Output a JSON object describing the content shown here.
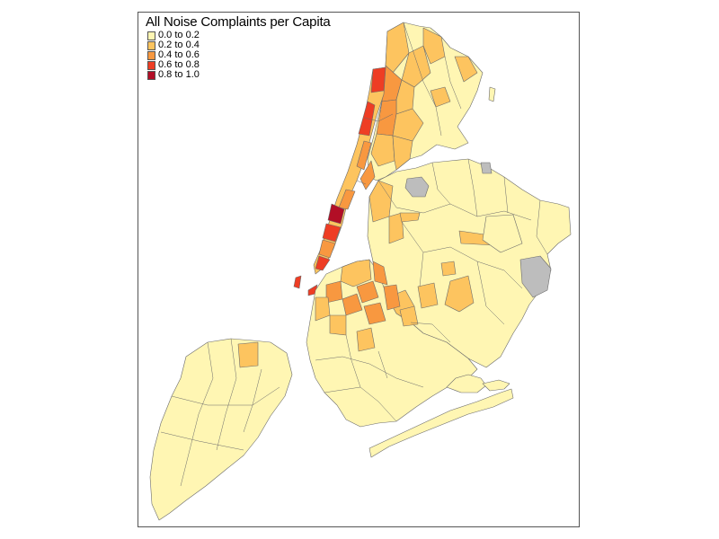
{
  "map": {
    "title": "All Noise Complaints per Capita",
    "legend": [
      {
        "label": "0.0 to 0.2",
        "color": "#fff6b3"
      },
      {
        "label": "0.2 to 0.4",
        "color": "#fdc45f"
      },
      {
        "label": "0.4 to 0.6",
        "color": "#f89840"
      },
      {
        "label": "0.6 to 0.8",
        "color": "#ee3d24"
      },
      {
        "label": "0.8 to 1.0",
        "color": "#b20e26"
      }
    ],
    "no_data_color": "#bdbdbd",
    "border_color": "#6b6b6b"
  }
}
